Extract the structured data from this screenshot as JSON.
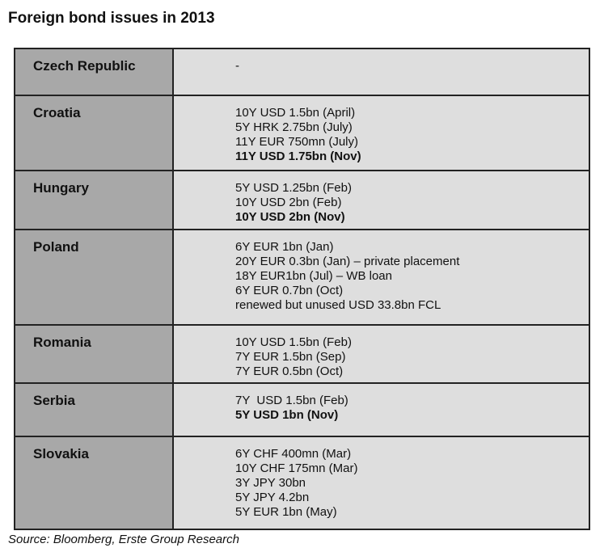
{
  "title": "Foreign bond issues in 2013",
  "rows": [
    {
      "country": "Czech Republic",
      "issues": [
        {
          "text": "-",
          "bold": false
        }
      ]
    },
    {
      "country": "Croatia",
      "issues": [
        {
          "text": "10Y USD 1.5bn (April)",
          "bold": false
        },
        {
          "text": "5Y HRK 2.75bn (July)",
          "bold": false
        },
        {
          "text": "11Y EUR 750mn (July)",
          "bold": false
        },
        {
          "text": "11Y USD 1.75bn (Nov)",
          "bold": true
        }
      ]
    },
    {
      "country": "Hungary",
      "issues": [
        {
          "text": "5Y USD 1.25bn (Feb)",
          "bold": false
        },
        {
          "text": "10Y USD 2bn (Feb)",
          "bold": false
        },
        {
          "text": "10Y USD 2bn (Nov)",
          "bold": true
        }
      ]
    },
    {
      "country": "Poland",
      "issues": [
        {
          "text": "6Y EUR 1bn (Jan)",
          "bold": false
        },
        {
          "text": "20Y EUR 0.3bn (Jan) – private placement",
          "bold": false
        },
        {
          "text": "18Y EUR1bn (Jul) – WB loan",
          "bold": false
        },
        {
          "text": "6Y EUR 0.7bn (Oct)",
          "bold": false
        },
        {
          "text": "renewed but unused USD 33.8bn FCL",
          "bold": false
        }
      ]
    },
    {
      "country": "Romania",
      "issues": [
        {
          "text": "10Y USD 1.5bn (Feb)",
          "bold": false
        },
        {
          "text": "7Y EUR 1.5bn (Sep)",
          "bold": false
        },
        {
          "text": "7Y EUR 0.5bn (Oct)",
          "bold": false
        }
      ]
    },
    {
      "country": "Serbia",
      "issues": [
        {
          "text": "7Y  USD 1.5bn (Feb)",
          "bold": false
        },
        {
          "text": "5Y USD 1bn (Nov)",
          "bold": true
        }
      ]
    },
    {
      "country": "Slovakia",
      "issues": [
        {
          "text": "6Y CHF 400mn (Mar)",
          "bold": false
        },
        {
          "text": "10Y CHF 175mn (Mar)",
          "bold": false
        },
        {
          "text": "3Y JPY 30bn",
          "bold": false
        },
        {
          "text": "5Y JPY 4.2bn",
          "bold": false
        },
        {
          "text": "5Y EUR 1bn (May)",
          "bold": false
        }
      ]
    }
  ],
  "source": "Source: Bloomberg, Erste Group Research"
}
